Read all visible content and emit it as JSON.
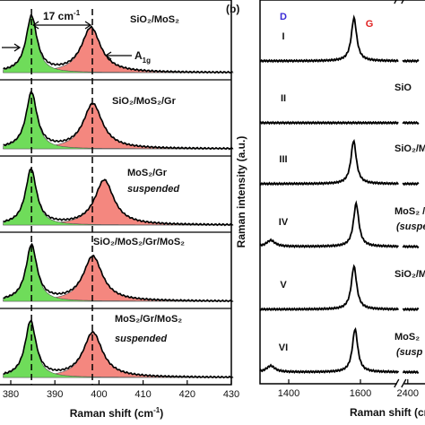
{
  "chart_data": [
    {
      "type": "lorentz-stack",
      "xlabel": {
        "text": "Raman shift (cm",
        "sup": "-1",
        "end": ")"
      },
      "xlim": [
        378.3,
        430.4
      ],
      "xticks": [
        380,
        390,
        400,
        410,
        420,
        430
      ],
      "dashed": [
        384.7,
        398.5
      ],
      "gap_label": {
        "text": "17 cm",
        "sup": "-1"
      },
      "peak_label": {
        "text": "A",
        "sub": "1g"
      },
      "series": [
        {
          "name": "SiO₂/MoS₂",
          "e2g": 384.7,
          "a1g": 398.2
        },
        {
          "name": "SiO₂/MoS₂/Gr",
          "e2g": 384.7,
          "a1g": 398.6
        },
        {
          "name": "MoS₂/Gr",
          "note": "suspended",
          "e2g": 384.6,
          "a1g": 401.2
        },
        {
          "name": "SiO₂/MoS₂/Gr/MoS₂",
          "e2g": 384.7,
          "a1g": 398.6
        },
        {
          "name": "MoS₂/Gr/MoS₂",
          "note": "suspended",
          "e2g": 384.5,
          "a1g": 398.6
        }
      ]
    },
    {
      "type": "raman-stack",
      "panel": "(b)",
      "ylabel": "Raman intensity (a.u.)",
      "xlabel": "Raman shift (cm",
      "xlim": [
        1320,
        2430
      ],
      "xbreak": [
        1712,
        2380
      ],
      "xticks": [
        1400,
        1600,
        2400
      ],
      "d_label": "D",
      "g_label": "G",
      "series": [
        {
          "name": "I",
          "g": 1582,
          "d": null,
          "tag": []
        },
        {
          "name": "II",
          "g": null,
          "d": null,
          "tag": [
            "SiO"
          ]
        },
        {
          "name": "III",
          "g": 1581,
          "d": null,
          "tag": [
            "SiO₂/M"
          ]
        },
        {
          "name": "IV",
          "g": 1588,
          "d": 1350,
          "tag": [
            "MoS₂ /",
            "(suspe"
          ]
        },
        {
          "name": "V",
          "g": 1582,
          "d": null,
          "tag": [
            "SiO₂/Mo"
          ]
        },
        {
          "name": "VI",
          "g": 1585,
          "d": 1350,
          "tag": [
            "MoS₂",
            "(susp"
          ]
        }
      ]
    }
  ]
}
